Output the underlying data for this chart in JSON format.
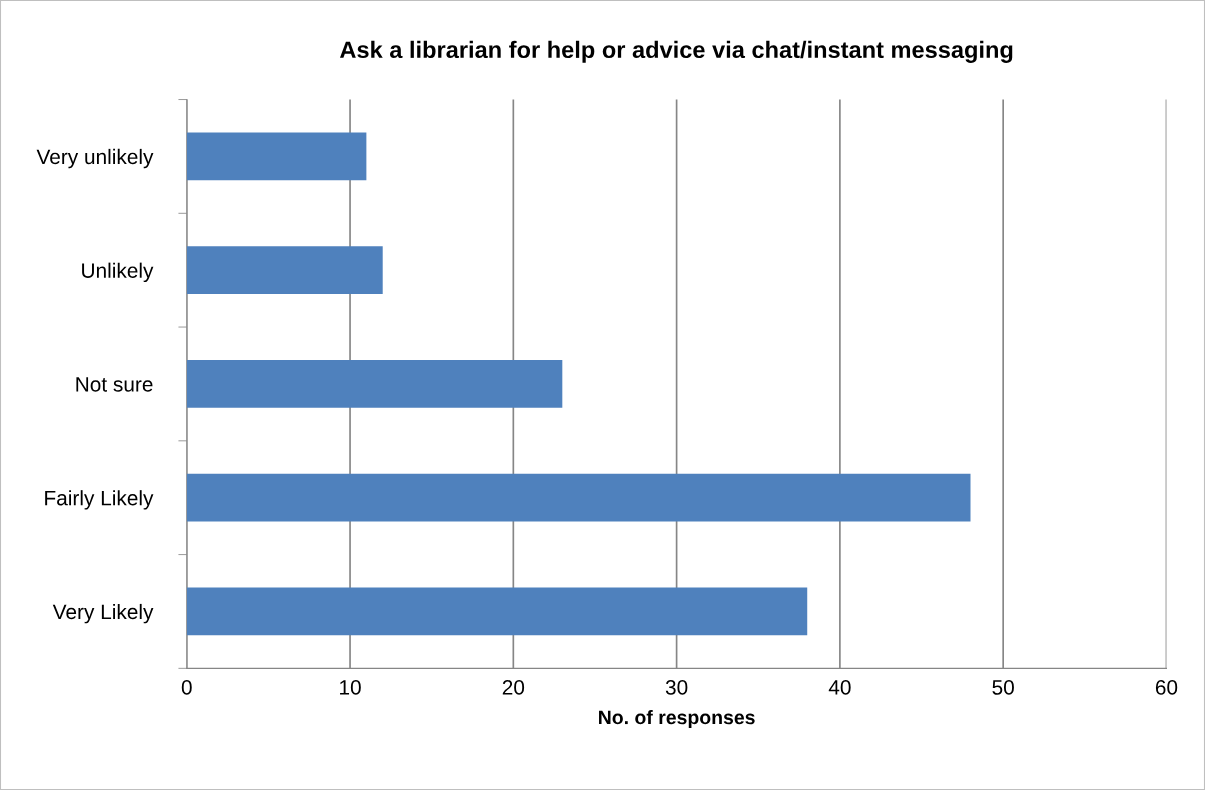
{
  "chart_data": {
    "type": "bar",
    "orientation": "horizontal",
    "title": "Ask a librarian for help or advice via chat/instant messaging",
    "xlabel": "No. of responses",
    "categories": [
      "Very unlikely",
      "Unlikely",
      "Not sure",
      "Fairly Likely",
      "Very Likely"
    ],
    "values": [
      11,
      12,
      23,
      48,
      38
    ],
    "color": "#4f81bd",
    "xlim": [
      0,
      60
    ],
    "xticks": [
      0,
      10,
      20,
      30,
      40,
      50,
      60
    ],
    "grid": "x",
    "legend": false
  }
}
